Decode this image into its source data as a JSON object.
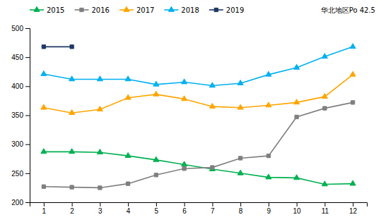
{
  "chart_data": {
    "type": "line",
    "annotation": "华北地区Po 42.5",
    "x": [
      1,
      2,
      3,
      4,
      5,
      6,
      7,
      8,
      9,
      10,
      11,
      12
    ],
    "series": [
      {
        "name": "2015",
        "color": "#00b050",
        "marker": "triangle",
        "values": [
          287,
          287,
          286,
          280,
          273,
          265,
          257,
          250,
          243,
          242,
          231,
          232
        ]
      },
      {
        "name": "2016",
        "color": "#7f7f7f",
        "marker": "square",
        "values": [
          227,
          226,
          225,
          232,
          247,
          258,
          260,
          276,
          280,
          347,
          362,
          372
        ]
      },
      {
        "name": "2017",
        "color": "#ffa500",
        "marker": "triangle",
        "values": [
          363,
          354,
          360,
          380,
          386,
          378,
          365,
          363,
          367,
          372,
          382,
          420
        ]
      },
      {
        "name": "2018",
        "color": "#00b0f0",
        "marker": "triangle",
        "values": [
          421,
          412,
          412,
          412,
          403,
          407,
          401,
          405,
          420,
          432,
          451,
          468
        ]
      },
      {
        "name": "2019",
        "color": "#1f3864",
        "marker": "square",
        "values": [
          468,
          468,
          null,
          null,
          null,
          null,
          null,
          null,
          null,
          null,
          null,
          null
        ]
      }
    ],
    "xlim": [
      0.5,
      12.5
    ],
    "xticks": [
      1,
      2,
      3,
      4,
      5,
      6,
      7,
      8,
      9,
      10,
      11,
      12
    ],
    "ylim": [
      200,
      500
    ],
    "yticks": [
      200,
      250,
      300,
      350,
      400,
      450,
      500
    ],
    "grid": false,
    "legend": "top"
  }
}
